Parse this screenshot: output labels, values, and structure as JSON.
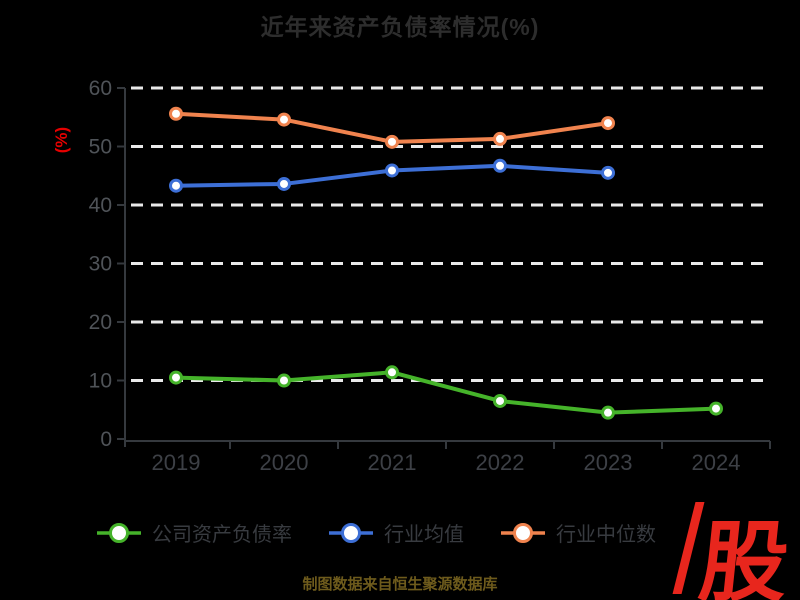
{
  "title": "近年来资产负债率情况(%)",
  "y_axis_unit": "(%)",
  "footer": {
    "source_text": "制图数据来自恒生聚源数据库"
  },
  "logo": {
    "text": "股"
  },
  "colors": {
    "background": "#000000",
    "title_text": "#2d2d2d",
    "axis_line": "#35393e",
    "tick_label": "#4f5358",
    "x_tick_label": "#3d4046",
    "gridline": "#e9e9e9",
    "y_unit_red": "#e60000",
    "legend_text": "#383b40",
    "footer_gold": "#6e5b1c",
    "logo_red": "#e8261d",
    "marker_fill": "#ffffff"
  },
  "chart_data": {
    "type": "line",
    "title": "近年来资产负债率情况(%)",
    "xlabel": "",
    "ylabel": "(%)",
    "categories": [
      "2019",
      "2020",
      "2021",
      "2022",
      "2023",
      "2024"
    ],
    "series": [
      {
        "name": "公司资产负债率",
        "color": "#45b32a",
        "values": [
          10.5,
          10.0,
          11.4,
          6.5,
          4.5,
          5.2
        ]
      },
      {
        "name": "行业均值",
        "color": "#3d6fd6",
        "values": [
          43.3,
          43.6,
          45.9,
          46.7,
          45.5,
          null
        ]
      },
      {
        "name": "行业中位数",
        "color": "#f0834e",
        "values": [
          55.6,
          54.6,
          50.8,
          51.3,
          54.0,
          null
        ]
      }
    ],
    "ylim": [
      0,
      60
    ],
    "ytick_step": 10,
    "grid": "horizontal-dashed-white",
    "gridline_values": [
      10,
      20,
      30,
      40,
      50,
      60
    ],
    "legend_position": "bottom",
    "marker": "circle-white-fill-colored-ring"
  }
}
